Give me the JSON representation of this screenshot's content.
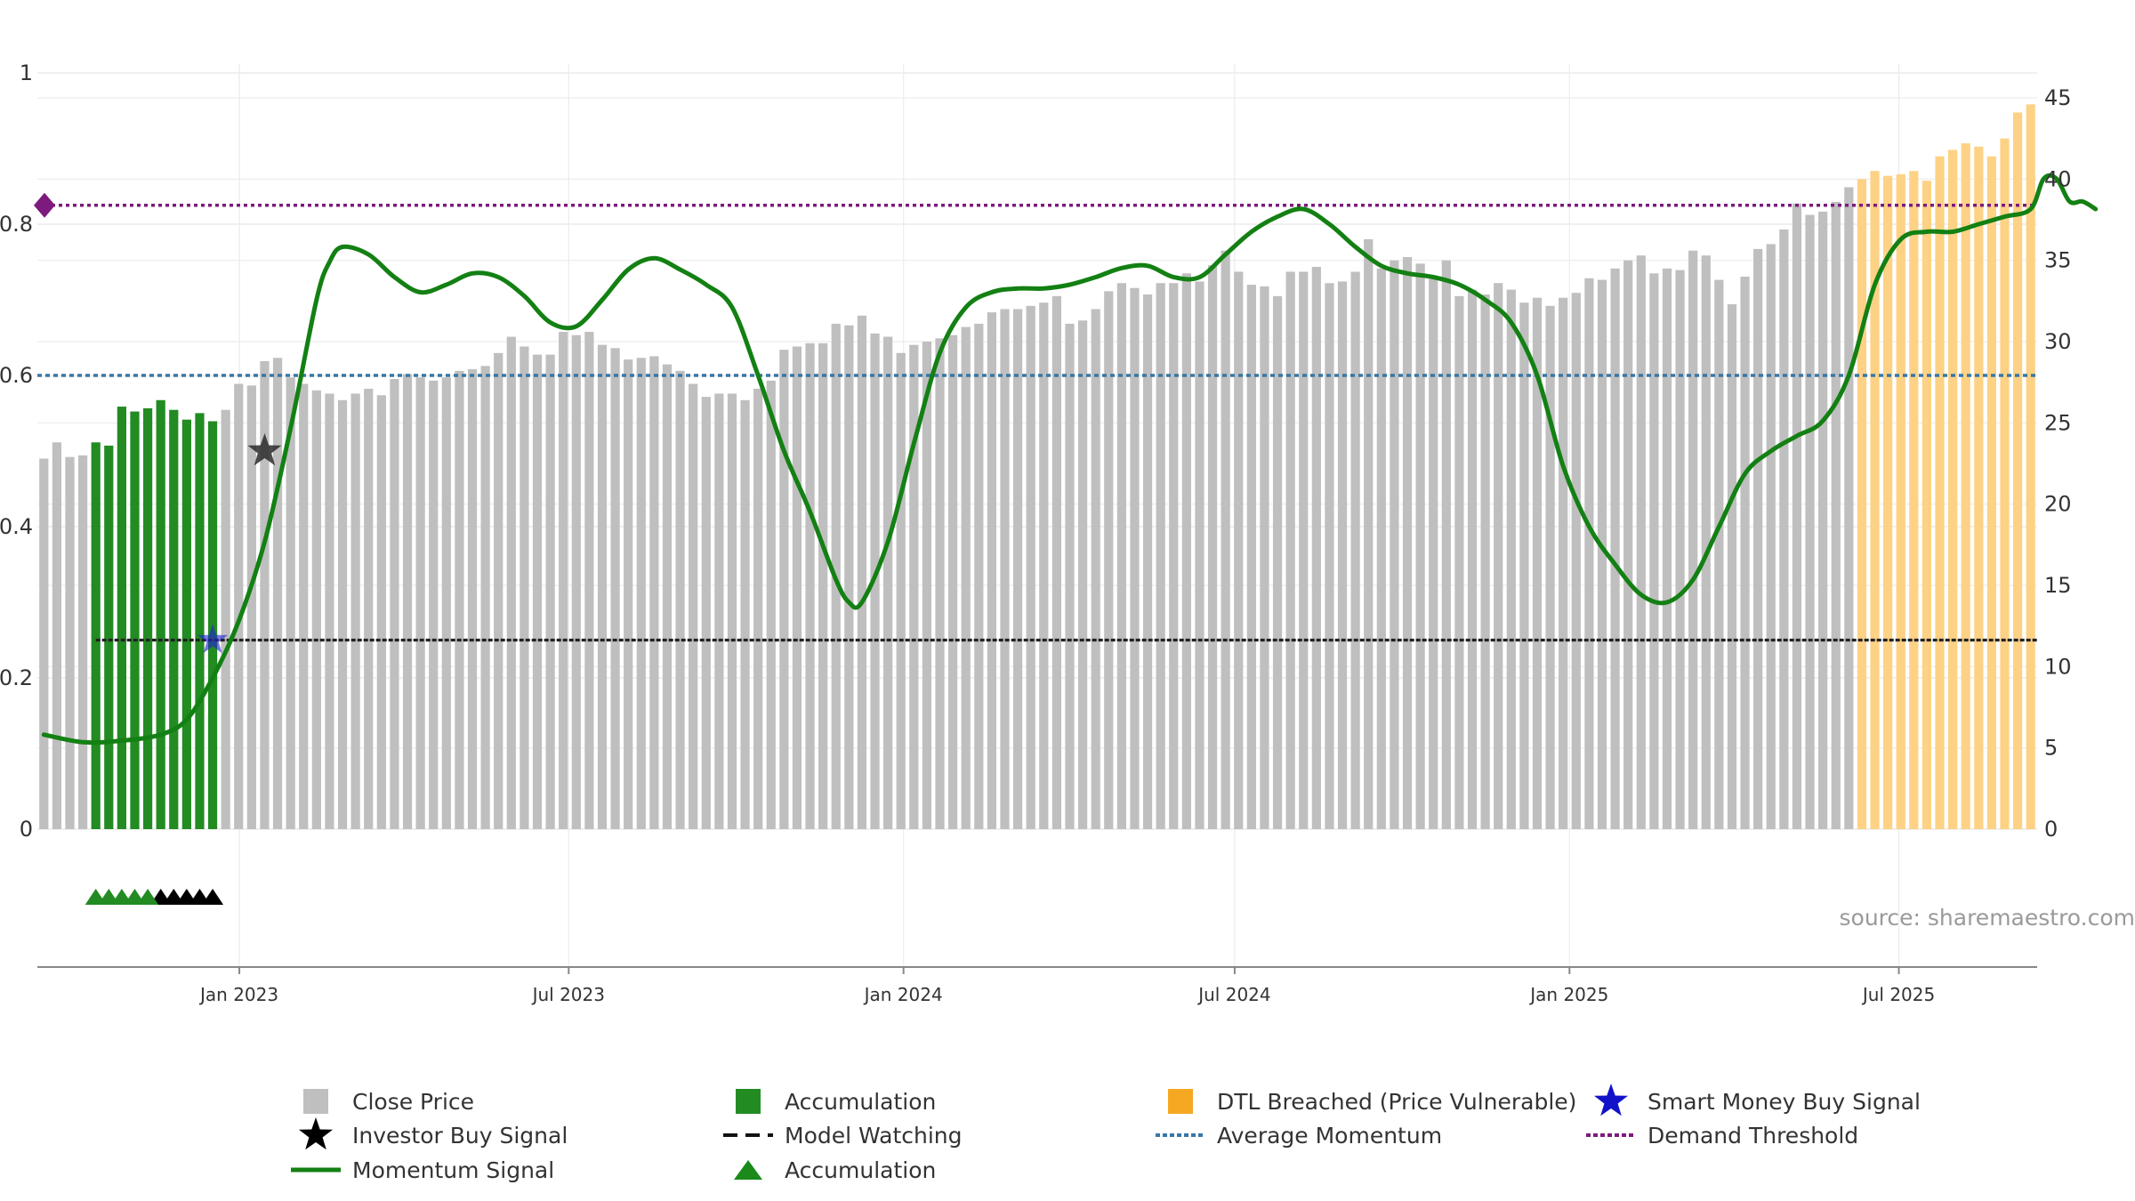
{
  "chart_data": {
    "type": "bar",
    "source_label": "source: sharemaestro.com",
    "left_axis": {
      "range": [
        0,
        1
      ],
      "ticks": [
        0,
        0.2,
        0.4,
        0.6,
        0.8,
        1
      ],
      "tick_labels": [
        "0",
        "0.2",
        "0.4",
        "0.6",
        "0.8",
        "1"
      ]
    },
    "right_axis": {
      "range": [
        0,
        45
      ],
      "ticks": [
        0,
        5,
        10,
        15,
        20,
        25,
        30,
        35,
        40,
        45
      ],
      "tick_labels": [
        "0",
        "5",
        "10",
        "15",
        "20",
        "25",
        "30",
        "35",
        "40",
        "45"
      ]
    },
    "x_axis": {
      "start_date": "2022-09-12",
      "end_date": "2025-09-15",
      "ticks": [
        {
          "date": "2023-01-01",
          "label": "Jan 2023"
        },
        {
          "date": "2023-07-01",
          "label": "Jul 2023"
        },
        {
          "date": "2024-01-01",
          "label": "Jan 2024"
        },
        {
          "date": "2024-07-01",
          "label": "Jul 2024"
        },
        {
          "date": "2025-01-01",
          "label": "Jan 2025"
        },
        {
          "date": "2025-07-01",
          "label": "Jul 2025"
        }
      ]
    },
    "close_price_weekly": [
      22.8,
      23.8,
      22.9,
      23.0,
      23.8,
      23.6,
      26.0,
      25.7,
      25.9,
      26.4,
      25.8,
      25.2,
      25.6,
      25.1,
      25.8,
      27.4,
      27.3,
      28.8,
      29.0,
      27.8,
      27.4,
      27.0,
      26.8,
      26.4,
      26.8,
      27.1,
      26.7,
      27.7,
      28.0,
      27.8,
      27.6,
      27.8,
      28.2,
      28.3,
      28.5,
      29.3,
      30.3,
      29.7,
      29.2,
      29.2,
      30.6,
      30.4,
      30.6,
      29.8,
      29.6,
      28.9,
      29.0,
      29.1,
      28.6,
      28.2,
      27.4,
      26.6,
      26.8,
      26.8,
      26.4,
      27.1,
      27.6,
      29.5,
      29.7,
      29.9,
      29.9,
      31.1,
      31.0,
      31.6,
      30.5,
      30.3,
      29.3,
      29.8,
      30.0,
      30.2,
      30.4,
      30.9,
      31.1,
      31.8,
      32.0,
      32.0,
      32.2,
      32.4,
      32.8,
      31.1,
      31.3,
      32.0,
      33.1,
      33.6,
      33.3,
      32.9,
      33.6,
      33.6,
      34.2,
      33.7,
      34.7,
      35.6,
      34.3,
      33.5,
      33.4,
      32.8,
      34.3,
      34.3,
      34.6,
      33.6,
      33.7,
      34.3,
      36.3,
      34.5,
      35.0,
      35.2,
      34.8,
      34.0,
      35.0,
      32.8,
      33.2,
      32.9,
      33.6,
      33.2,
      32.4,
      32.7,
      32.2,
      32.7,
      33.0,
      33.9,
      33.8,
      34.5,
      35.0,
      35.3,
      34.2,
      34.5,
      34.4,
      35.6,
      35.3,
      33.8,
      32.3,
      34.0,
      35.7,
      36.0,
      36.9,
      38.5,
      37.8,
      38.0,
      38.6,
      39.5,
      40.0,
      40.5,
      40.2,
      40.3,
      40.5,
      39.9,
      41.4,
      41.8,
      42.2,
      42.0,
      41.4,
      42.5,
      44.1,
      44.6
    ],
    "accumulation_bar_indices": [
      4,
      5,
      6,
      7,
      8,
      9,
      10,
      11,
      12,
      13
    ],
    "dtl_breached_start_index": 140,
    "momentum_signal": [
      [
        0,
        0.125
      ],
      [
        3,
        0.115
      ],
      [
        6,
        0.117
      ],
      [
        9,
        0.125
      ],
      [
        11,
        0.145
      ],
      [
        13,
        0.2
      ],
      [
        15,
        0.275
      ],
      [
        17,
        0.38
      ],
      [
        19,
        0.53
      ],
      [
        21,
        0.7
      ],
      [
        22,
        0.75
      ],
      [
        23,
        0.77
      ],
      [
        25,
        0.76
      ],
      [
        27,
        0.73
      ],
      [
        29,
        0.71
      ],
      [
        31,
        0.72
      ],
      [
        33,
        0.735
      ],
      [
        35,
        0.73
      ],
      [
        37,
        0.705
      ],
      [
        39,
        0.67
      ],
      [
        41,
        0.665
      ],
      [
        43,
        0.7
      ],
      [
        45,
        0.74
      ],
      [
        47,
        0.755
      ],
      [
        49,
        0.74
      ],
      [
        51,
        0.72
      ],
      [
        53,
        0.69
      ],
      [
        55,
        0.6
      ],
      [
        57,
        0.5
      ],
      [
        59,
        0.42
      ],
      [
        61,
        0.33
      ],
      [
        62,
        0.3
      ],
      [
        63,
        0.3
      ],
      [
        65,
        0.38
      ],
      [
        67,
        0.51
      ],
      [
        69,
        0.63
      ],
      [
        71,
        0.69
      ],
      [
        73,
        0.71
      ],
      [
        75,
        0.715
      ],
      [
        77,
        0.715
      ],
      [
        79,
        0.72
      ],
      [
        81,
        0.73
      ],
      [
        83,
        0.742
      ],
      [
        85,
        0.745
      ],
      [
        87,
        0.73
      ],
      [
        89,
        0.73
      ],
      [
        91,
        0.76
      ],
      [
        93,
        0.79
      ],
      [
        95,
        0.81
      ],
      [
        97,
        0.82
      ],
      [
        99,
        0.8
      ],
      [
        101,
        0.77
      ],
      [
        103,
        0.745
      ],
      [
        105,
        0.735
      ],
      [
        107,
        0.73
      ],
      [
        109,
        0.72
      ],
      [
        111,
        0.7
      ],
      [
        113,
        0.67
      ],
      [
        115,
        0.6
      ],
      [
        117,
        0.48
      ],
      [
        119,
        0.4
      ],
      [
        121,
        0.35
      ],
      [
        123,
        0.31
      ],
      [
        125,
        0.3
      ],
      [
        127,
        0.33
      ],
      [
        129,
        0.4
      ],
      [
        131,
        0.47
      ],
      [
        133,
        0.5
      ],
      [
        135,
        0.52
      ],
      [
        137,
        0.54
      ],
      [
        139,
        0.6
      ],
      [
        141,
        0.72
      ],
      [
        143,
        0.78
      ],
      [
        145,
        0.79
      ],
      [
        147,
        0.79
      ],
      [
        149,
        0.8
      ],
      [
        151,
        0.81
      ],
      [
        153,
        0.82
      ],
      [
        154,
        0.86
      ],
      [
        155,
        0.86
      ],
      [
        156,
        0.83
      ],
      [
        157,
        0.83
      ],
      [
        158,
        0.82
      ]
    ],
    "average_momentum": 0.6,
    "demand_threshold": 0.825,
    "model_watching_level": 0.25,
    "model_watching_start_index": 4,
    "investor_buy_signal": {
      "index": 17,
      "value": 0.5
    },
    "smart_money_buy_signal": {
      "index": 13,
      "value": 0.25
    },
    "accumulation_triangle_indices": [
      4,
      5,
      6,
      7,
      8
    ],
    "watching_triangle_indices": [
      9,
      10,
      11,
      12,
      13
    ],
    "colors": {
      "close_price": "#bfbfbf",
      "accumulation": "#228b22",
      "dtl_breached": "#fdd285",
      "momentum": "#138013",
      "momentum_light": "#5a9a3a",
      "average_momentum": "#3777a6",
      "demand_threshold": "#7d1a7d",
      "model_watching": "#222222",
      "smart_money": "#1f1fd6",
      "investor_star": "#2a2a2a",
      "grid": "#ececec",
      "axis": "#888888"
    },
    "legend": [
      {
        "label": "Close Price",
        "marker": "square",
        "color": "#bfbfbf"
      },
      {
        "label": "Accumulation",
        "marker": "square",
        "color": "#228b22"
      },
      {
        "label": "DTL Breached (Price Vulnerable)",
        "marker": "square",
        "color": "#f7a823"
      },
      {
        "label": "Smart Money Buy Signal",
        "marker": "star",
        "color": "#1212c8"
      },
      {
        "label": "Investor Buy Signal",
        "marker": "star",
        "color": "#000000"
      },
      {
        "label": "Model Watching",
        "marker": "dash",
        "color": "#111111"
      },
      {
        "label": "Average Momentum",
        "marker": "dot",
        "color": "#3777a6"
      },
      {
        "label": "Demand Threshold",
        "marker": "dot",
        "color": "#7d1a7d"
      },
      {
        "label": "Momentum Signal",
        "marker": "line",
        "color": "#138013"
      },
      {
        "label": "Accumulation",
        "marker": "triangle",
        "color": "#1a8a1a"
      }
    ]
  }
}
